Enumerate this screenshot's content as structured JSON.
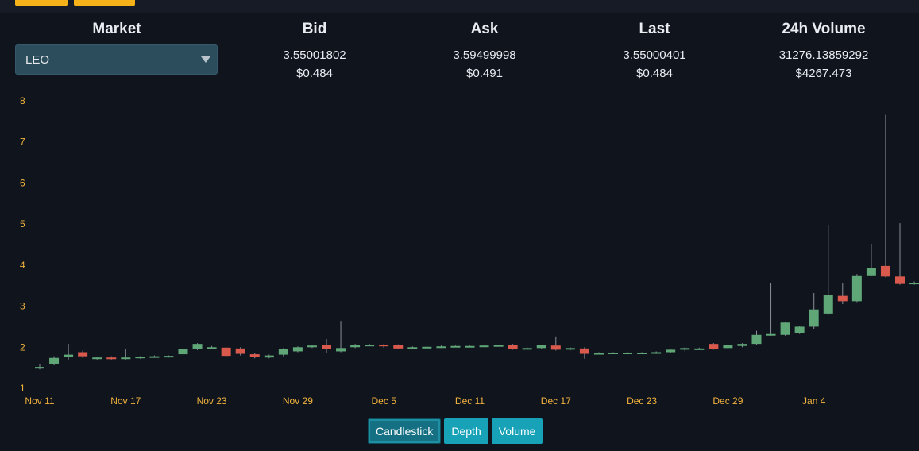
{
  "header": {
    "market_label": "Market",
    "bid_label": "Bid",
    "ask_label": "Ask",
    "last_label": "Last",
    "volume_label": "24h Volume"
  },
  "market_select": {
    "value": "LEO"
  },
  "quote": {
    "bid": "3.55001802",
    "bid_usd": "$0.484",
    "ask": "3.59499998",
    "ask_usd": "$0.491",
    "last": "3.55000401",
    "last_usd": "$0.484",
    "volume": "31276.13859292",
    "volume_usd": "$4267.473"
  },
  "tabs": [
    {
      "label": "Candlestick",
      "active": true
    },
    {
      "label": "Depth",
      "active": false
    },
    {
      "label": "Volume",
      "active": false
    }
  ],
  "colors": {
    "up": "#5fa777",
    "down": "#d9594c",
    "axis_label": "#f3b33d",
    "wick": "#8a8f98"
  },
  "chart_data": {
    "type": "candlestick",
    "ylim": [
      1,
      8
    ],
    "y_ticks": [
      1,
      2,
      3,
      4,
      5,
      6,
      7,
      8
    ],
    "x_ticks": [
      "Nov 11",
      "Nov 17",
      "Nov 23",
      "Nov 29",
      "Dec 5",
      "Dec 11",
      "Dec 17",
      "Dec 23",
      "Dec 29",
      "Jan 4"
    ],
    "grid": false,
    "candles": [
      {
        "date": "Nov 11",
        "o": 1.48,
        "h": 1.58,
        "l": 1.46,
        "c": 1.52
      },
      {
        "date": "Nov 12",
        "o": 1.6,
        "h": 1.78,
        "l": 1.56,
        "c": 1.74
      },
      {
        "date": "Nov 13",
        "o": 1.76,
        "h": 2.08,
        "l": 1.7,
        "c": 1.82
      },
      {
        "date": "Nov 14",
        "o": 1.88,
        "h": 1.92,
        "l": 1.74,
        "c": 1.78
      },
      {
        "date": "Nov 15",
        "o": 1.72,
        "h": 1.77,
        "l": 1.7,
        "c": 1.75
      },
      {
        "date": "Nov 16",
        "o": 1.75,
        "h": 1.78,
        "l": 1.7,
        "c": 1.71
      },
      {
        "date": "Nov 17",
        "o": 1.72,
        "h": 1.96,
        "l": 1.7,
        "c": 1.75
      },
      {
        "date": "Nov 18",
        "o": 1.74,
        "h": 1.78,
        "l": 1.72,
        "c": 1.77
      },
      {
        "date": "Nov 19",
        "o": 1.77,
        "h": 1.8,
        "l": 1.75,
        "c": 1.78
      },
      {
        "date": "Nov 20",
        "o": 1.77,
        "h": 1.8,
        "l": 1.75,
        "c": 1.79
      },
      {
        "date": "Nov 21",
        "o": 1.83,
        "h": 1.97,
        "l": 1.8,
        "c": 1.95
      },
      {
        "date": "Nov 22",
        "o": 1.95,
        "h": 2.1,
        "l": 1.93,
        "c": 2.08
      },
      {
        "date": "Nov 23",
        "o": 1.99,
        "h": 2.03,
        "l": 1.97,
        "c": 2.0
      },
      {
        "date": "Nov 24",
        "o": 1.99,
        "h": 2.0,
        "l": 1.77,
        "c": 1.79
      },
      {
        "date": "Nov 25",
        "o": 1.97,
        "h": 2.0,
        "l": 1.8,
        "c": 1.84
      },
      {
        "date": "Nov 26",
        "o": 1.83,
        "h": 1.86,
        "l": 1.73,
        "c": 1.76
      },
      {
        "date": "Nov 27",
        "o": 1.75,
        "h": 1.82,
        "l": 1.73,
        "c": 1.8
      },
      {
        "date": "Nov 28",
        "o": 1.82,
        "h": 1.98,
        "l": 1.78,
        "c": 1.96
      },
      {
        "date": "Nov 29",
        "o": 1.9,
        "h": 2.02,
        "l": 1.88,
        "c": 2.0
      },
      {
        "date": "Nov 30",
        "o": 2.0,
        "h": 2.06,
        "l": 1.98,
        "c": 2.04
      },
      {
        "date": "Dec 1",
        "o": 2.05,
        "h": 2.2,
        "l": 1.85,
        "c": 1.95
      },
      {
        "date": "Dec 2",
        "o": 1.9,
        "h": 2.64,
        "l": 1.88,
        "c": 1.98
      },
      {
        "date": "Dec 3",
        "o": 2.0,
        "h": 2.08,
        "l": 1.98,
        "c": 2.05
      },
      {
        "date": "Dec 4",
        "o": 2.05,
        "h": 2.08,
        "l": 2.03,
        "c": 2.06
      },
      {
        "date": "Dec 5",
        "o": 2.06,
        "h": 2.08,
        "l": 1.98,
        "c": 2.04
      },
      {
        "date": "Dec 6",
        "o": 2.05,
        "h": 2.07,
        "l": 1.95,
        "c": 1.97
      },
      {
        "date": "Dec 7",
        "o": 1.98,
        "h": 2.02,
        "l": 1.96,
        "c": 2.0
      },
      {
        "date": "Dec 8",
        "o": 2.0,
        "h": 2.02,
        "l": 1.98,
        "c": 2.01
      },
      {
        "date": "Dec 9",
        "o": 2.0,
        "h": 2.04,
        "l": 1.98,
        "c": 2.02
      },
      {
        "date": "Dec 10",
        "o": 2.02,
        "h": 2.04,
        "l": 2.0,
        "c": 2.03
      },
      {
        "date": "Dec 11",
        "o": 2.02,
        "h": 2.04,
        "l": 2.0,
        "c": 2.03
      },
      {
        "date": "Dec 12",
        "o": 2.02,
        "h": 2.05,
        "l": 2.01,
        "c": 2.04
      },
      {
        "date": "Dec 13",
        "o": 2.04,
        "h": 2.06,
        "l": 2.02,
        "c": 2.05
      },
      {
        "date": "Dec 14",
        "o": 2.06,
        "h": 2.08,
        "l": 1.94,
        "c": 1.96
      },
      {
        "date": "Dec 15",
        "o": 1.97,
        "h": 2.0,
        "l": 1.95,
        "c": 1.98
      },
      {
        "date": "Dec 16",
        "o": 1.98,
        "h": 2.06,
        "l": 1.96,
        "c": 2.05
      },
      {
        "date": "Dec 17",
        "o": 2.04,
        "h": 2.26,
        "l": 1.92,
        "c": 1.94
      },
      {
        "date": "Dec 18",
        "o": 1.96,
        "h": 2.0,
        "l": 1.92,
        "c": 1.98
      },
      {
        "date": "Dec 19",
        "o": 1.97,
        "h": 2.0,
        "l": 1.72,
        "c": 1.84
      },
      {
        "date": "Dec 20",
        "o": 1.85,
        "h": 1.88,
        "l": 1.83,
        "c": 1.86
      },
      {
        "date": "Dec 21",
        "o": 1.86,
        "h": 1.88,
        "l": 1.84,
        "c": 1.87
      },
      {
        "date": "Dec 22",
        "o": 1.86,
        "h": 1.88,
        "l": 1.84,
        "c": 1.87
      },
      {
        "date": "Dec 23",
        "o": 1.86,
        "h": 1.88,
        "l": 1.84,
        "c": 1.87
      },
      {
        "date": "Dec 24",
        "o": 1.86,
        "h": 1.9,
        "l": 1.84,
        "c": 1.88
      },
      {
        "date": "Dec 25",
        "o": 1.88,
        "h": 1.96,
        "l": 1.86,
        "c": 1.94
      },
      {
        "date": "Dec 26",
        "o": 1.94,
        "h": 2.0,
        "l": 1.9,
        "c": 1.98
      },
      {
        "date": "Dec 27",
        "o": 1.96,
        "h": 1.99,
        "l": 1.94,
        "c": 1.97
      },
      {
        "date": "Dec 28",
        "o": 2.08,
        "h": 2.1,
        "l": 1.94,
        "c": 1.95
      },
      {
        "date": "Dec 29",
        "o": 1.98,
        "h": 2.07,
        "l": 1.96,
        "c": 2.05
      },
      {
        "date": "Dec 30",
        "o": 2.03,
        "h": 2.1,
        "l": 2.0,
        "c": 2.08
      },
      {
        "date": "Dec 31",
        "o": 2.08,
        "h": 2.4,
        "l": 2.05,
        "c": 2.3
      },
      {
        "date": "Jan 1",
        "o": 2.3,
        "h": 3.56,
        "l": 2.28,
        "c": 2.32
      },
      {
        "date": "Jan 2",
        "o": 2.3,
        "h": 2.62,
        "l": 2.28,
        "c": 2.6
      },
      {
        "date": "Jan 3",
        "o": 2.35,
        "h": 2.52,
        "l": 2.32,
        "c": 2.5
      },
      {
        "date": "Jan 4",
        "o": 2.5,
        "h": 3.32,
        "l": 2.45,
        "c": 2.92
      },
      {
        "date": "Jan 5",
        "o": 2.82,
        "h": 4.98,
        "l": 2.78,
        "c": 3.27
      },
      {
        "date": "Jan 6",
        "o": 3.25,
        "h": 3.56,
        "l": 3.05,
        "c": 3.12
      },
      {
        "date": "Jan 7",
        "o": 3.12,
        "h": 3.78,
        "l": 3.1,
        "c": 3.75
      },
      {
        "date": "Jan 8",
        "o": 3.75,
        "h": 4.52,
        "l": 3.74,
        "c": 3.92
      },
      {
        "date": "Jan 9",
        "o": 3.98,
        "h": 7.66,
        "l": 3.7,
        "c": 3.72
      },
      {
        "date": "Jan 10",
        "o": 3.72,
        "h": 5.02,
        "l": 3.52,
        "c": 3.54
      },
      {
        "date": "Jan 11",
        "o": 3.56,
        "h": 3.6,
        "l": 3.52,
        "c": 3.57
      }
    ]
  }
}
